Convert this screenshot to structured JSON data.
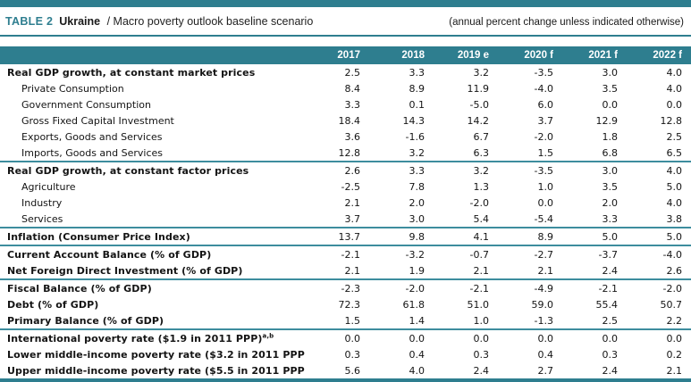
{
  "header": {
    "table_label": "TABLE 2",
    "country": "Ukraine",
    "subtitle": "/ Macro poverty outlook baseline scenario",
    "note": "(annual percent change unless indicated otherwise)"
  },
  "colors": {
    "teal_accent": "#2e7e8f",
    "separator_teal": "#3d8d9e",
    "text": "#141414"
  },
  "table": {
    "columns": [
      "2017",
      "2018",
      "2019 e",
      "2020 f",
      "2021 f",
      "2022 f"
    ],
    "rows": [
      {
        "label": "Real GDP growth, at constant market prices",
        "bold": true,
        "indent": false,
        "sep": false,
        "values": [
          "2.5",
          "3.3",
          "3.2",
          "-3.5",
          "3.0",
          "4.0"
        ]
      },
      {
        "label": "Private Consumption",
        "bold": false,
        "indent": true,
        "sep": false,
        "values": [
          "8.4",
          "8.9",
          "11.9",
          "-4.0",
          "3.5",
          "4.0"
        ]
      },
      {
        "label": "Government Consumption",
        "bold": false,
        "indent": true,
        "sep": false,
        "values": [
          "3.3",
          "0.1",
          "-5.0",
          "6.0",
          "0.0",
          "0.0"
        ]
      },
      {
        "label": "Gross Fixed Capital Investment",
        "bold": false,
        "indent": true,
        "sep": false,
        "values": [
          "18.4",
          "14.3",
          "14.2",
          "3.7",
          "12.9",
          "12.8"
        ]
      },
      {
        "label": "Exports, Goods and Services",
        "bold": false,
        "indent": true,
        "sep": false,
        "values": [
          "3.6",
          "-1.6",
          "6.7",
          "-2.0",
          "1.8",
          "2.5"
        ]
      },
      {
        "label": "Imports, Goods and Services",
        "bold": false,
        "indent": true,
        "sep": false,
        "values": [
          "12.8",
          "3.2",
          "6.3",
          "1.5",
          "6.8",
          "6.5"
        ]
      },
      {
        "label": "Real GDP growth, at constant factor prices",
        "bold": true,
        "indent": false,
        "sep": true,
        "values": [
          "2.6",
          "3.3",
          "3.2",
          "-3.5",
          "3.0",
          "4.0"
        ]
      },
      {
        "label": "Agriculture",
        "bold": false,
        "indent": true,
        "sep": false,
        "values": [
          "-2.5",
          "7.8",
          "1.3",
          "1.0",
          "3.5",
          "5.0"
        ]
      },
      {
        "label": "Industry",
        "bold": false,
        "indent": true,
        "sep": false,
        "values": [
          "2.1",
          "2.0",
          "-2.0",
          "0.0",
          "2.0",
          "4.0"
        ]
      },
      {
        "label": "Services",
        "bold": false,
        "indent": true,
        "sep": false,
        "values": [
          "3.7",
          "3.0",
          "5.4",
          "-5.4",
          "3.3",
          "3.8"
        ]
      },
      {
        "label": "Inflation (Consumer Price Index)",
        "bold": true,
        "indent": false,
        "sep": true,
        "values": [
          "13.7",
          "9.8",
          "4.1",
          "8.9",
          "5.0",
          "5.0"
        ]
      },
      {
        "label": "Current Account Balance (% of GDP)",
        "bold": true,
        "indent": false,
        "sep": true,
        "values": [
          "-2.1",
          "-3.2",
          "-0.7",
          "-2.7",
          "-3.7",
          "-4.0"
        ]
      },
      {
        "label": "Net Foreign Direct Investment (% of GDP)",
        "bold": true,
        "indent": false,
        "sep": false,
        "values": [
          "2.1",
          "1.9",
          "2.1",
          "2.1",
          "2.4",
          "2.6"
        ]
      },
      {
        "label": "Fiscal Balance (% of GDP)",
        "bold": true,
        "indent": false,
        "sep": true,
        "values": [
          "-2.3",
          "-2.0",
          "-2.1",
          "-4.9",
          "-2.1",
          "-2.0"
        ]
      },
      {
        "label": "Debt (% of GDP)",
        "bold": true,
        "indent": false,
        "sep": false,
        "values": [
          "72.3",
          "61.8",
          "51.0",
          "59.0",
          "55.4",
          "50.7"
        ]
      },
      {
        "label": "Primary Balance (% of GDP)",
        "bold": true,
        "indent": false,
        "sep": false,
        "values": [
          "1.5",
          "1.4",
          "1.0",
          "-1.3",
          "2.5",
          "2.2"
        ]
      },
      {
        "label": "International poverty rate ($1.9 in 2011 PPP)",
        "sup": "a,b",
        "bold": true,
        "indent": false,
        "sep": true,
        "values": [
          "0.0",
          "0.0",
          "0.0",
          "0.0",
          "0.0",
          "0.0"
        ]
      },
      {
        "label": "Lower middle-income poverty rate ($3.2 in 2011 PPP)",
        "sup": "a,b",
        "bold": true,
        "indent": false,
        "sep": false,
        "values": [
          "0.3",
          "0.4",
          "0.3",
          "0.4",
          "0.3",
          "0.2"
        ]
      },
      {
        "label": "Upper middle-income poverty rate ($5.5 in 2011 PPP)",
        "sup": "a,b",
        "bold": true,
        "indent": false,
        "sep": false,
        "values": [
          "5.6",
          "4.0",
          "2.4",
          "2.7",
          "2.4",
          "2.1"
        ]
      }
    ]
  }
}
